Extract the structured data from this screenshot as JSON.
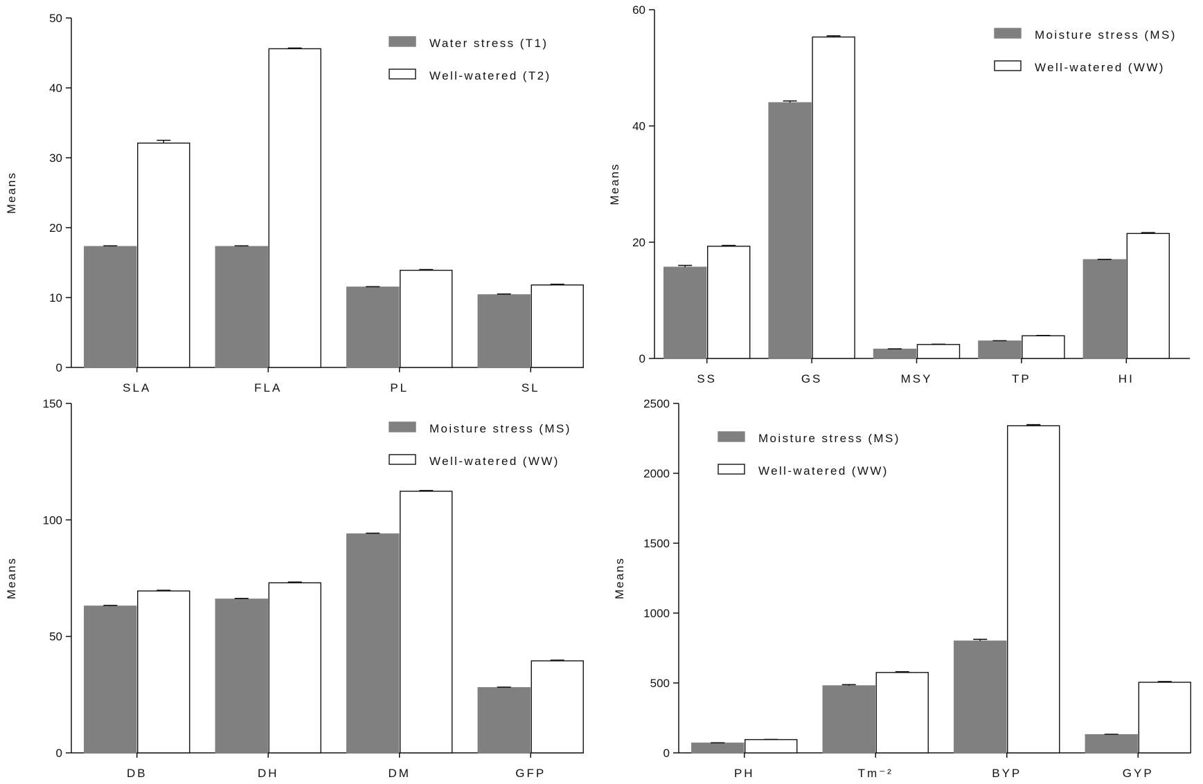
{
  "chart_data": [
    {
      "type": "bar",
      "ylabel": "Means",
      "ylim": [
        0,
        50
      ],
      "yticks": [
        0,
        10,
        20,
        30,
        40,
        50
      ],
      "categories": [
        "SLA",
        "FLA",
        "PL",
        "SL"
      ],
      "legend_position": "top-right",
      "series": [
        {
          "name": "Water stress (T1)",
          "values": [
            17.3,
            17.3,
            11.5,
            10.4
          ],
          "errors": [
            0.1,
            0.1,
            0.05,
            0.1
          ]
        },
        {
          "name": "Well-watered (T2)",
          "values": [
            32.1,
            45.6,
            13.9,
            11.8
          ],
          "errors": [
            0.4,
            0.1,
            0.1,
            0.1
          ]
        }
      ]
    },
    {
      "type": "bar",
      "ylabel": "Means",
      "ylim": [
        0,
        60
      ],
      "yticks": [
        0,
        20,
        40,
        60
      ],
      "categories": [
        "SS",
        "GS",
        "MSY",
        "TP",
        "HI"
      ],
      "legend_position": "top-right",
      "series": [
        {
          "name": "Moisture stress (MS)",
          "values": [
            15.7,
            44.0,
            1.6,
            3.0,
            17.0
          ],
          "errors": [
            0.3,
            0.3,
            0.05,
            0.05,
            0.05
          ]
        },
        {
          "name": "Well-watered (WW)",
          "values": [
            19.3,
            55.3,
            2.4,
            3.9,
            21.5
          ],
          "errors": [
            0.15,
            0.2,
            0.05,
            0.05,
            0.15
          ]
        }
      ]
    },
    {
      "type": "bar",
      "ylabel": "Means",
      "ylim": [
        0,
        150
      ],
      "yticks": [
        0,
        50,
        100,
        150
      ],
      "categories": [
        "DB",
        "DH",
        "DM",
        "GFP"
      ],
      "legend_position": "top-right",
      "series": [
        {
          "name": "Moisture stress (MS)",
          "values": [
            63.0,
            66.0,
            94.0,
            28.0
          ],
          "errors": [
            0.3,
            0.3,
            0.3,
            0.2
          ]
        },
        {
          "name": "Well-watered (WW)",
          "values": [
            69.5,
            73.0,
            112.3,
            39.5
          ],
          "errors": [
            0.3,
            0.3,
            0.3,
            0.3
          ]
        }
      ]
    },
    {
      "type": "bar",
      "ylabel": "Means",
      "ylim": [
        0,
        2500
      ],
      "yticks": [
        0,
        500,
        1000,
        1500,
        2000,
        2500
      ],
      "categories": [
        "PH",
        "Tm⁻²",
        "BYP",
        "GYP"
      ],
      "legend_position": "top-left",
      "series": [
        {
          "name": "Moisture stress (MS)",
          "values": [
            70,
            480,
            800,
            130
          ],
          "errors": [
            2,
            8,
            12,
            3
          ]
        },
        {
          "name": "Well-watered (WW)",
          "values": [
            95,
            575,
            2340,
            505
          ],
          "errors": [
            1,
            5,
            8,
            5
          ]
        }
      ]
    }
  ],
  "colors": {
    "stress": "#808080",
    "watered": "#ffffff",
    "axis": "#111111"
  }
}
